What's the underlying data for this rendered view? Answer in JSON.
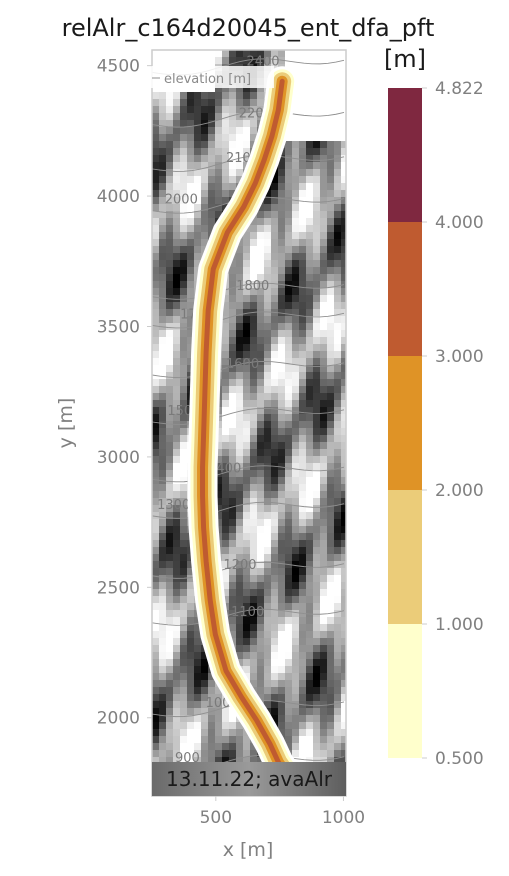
{
  "chart_data": {
    "type": "heatmap",
    "title": "relAlr_c164d20045_ent_dfa_pft",
    "xlabel": "x [m]",
    "ylabel": "y [m]",
    "xlim": [
      250,
      1010
    ],
    "ylim": [
      1700,
      4560
    ],
    "x_ticks": [
      500,
      1000
    ],
    "x_tick_labels": [
      "500",
      "1000"
    ],
    "y_ticks": [
      2000,
      2500,
      3000,
      3500,
      4000,
      4500
    ],
    "y_tick_labels": [
      "2000",
      "2500",
      "3000",
      "3500",
      "4000",
      "4500"
    ],
    "legend": {
      "entries": [
        "elevation [m]"
      ],
      "placement": "top-left"
    },
    "stamp_text": "13.11.22; avaAlr",
    "colorbar": {
      "unit_label": "[m]",
      "bounds": [
        0.5,
        1.0,
        2.0,
        3.0,
        4.0,
        4.822
      ],
      "tick_labels": [
        "0.500",
        "1.000",
        "2.000",
        "3.000",
        "4.000",
        "4.822"
      ],
      "colors": [
        "#ffffcc",
        "#ebcc79",
        "#df9326",
        "#bf5b30",
        "#7f2840"
      ]
    },
    "flow_path": {
      "description_values": "centerline of peak flow thickness (x, y in m)",
      "x": [
        760,
        745,
        720,
        690,
        655,
        610,
        545,
        490,
        470,
        462,
        457,
        452,
        448,
        448,
        452,
        462,
        478,
        498,
        540,
        600,
        660,
        712,
        745,
        780
      ],
      "y": [
        4440,
        4330,
        4230,
        4140,
        4050,
        3960,
        3860,
        3720,
        3560,
        3400,
        3240,
        3080,
        2960,
        2850,
        2730,
        2600,
        2450,
        2320,
        2180,
        2080,
        1990,
        1900,
        1830,
        1780
      ]
    },
    "contours": [
      {
        "label": "900",
        "label_x": 340,
        "label_y": 1850
      },
      {
        "label": "1000",
        "label_x": 460,
        "label_y": 2060
      },
      {
        "label": "1100",
        "label_x": 560,
        "label_y": 2410
      },
      {
        "label": "1200",
        "label_x": 530,
        "label_y": 2590
      },
      {
        "label": "1300",
        "label_x": 270,
        "label_y": 2820
      },
      {
        "label": "1400",
        "label_x": 470,
        "label_y": 2960
      },
      {
        "label": "1500",
        "label_x": 310,
        "label_y": 3180
      },
      {
        "label": "1600",
        "label_x": 540,
        "label_y": 3360
      },
      {
        "label": "1700",
        "label_x": 360,
        "label_y": 3550
      },
      {
        "label": "1800",
        "label_x": 580,
        "label_y": 3660
      },
      {
        "label": "2000",
        "label_x": 300,
        "label_y": 3990
      },
      {
        "label": "2100",
        "label_x": 540,
        "label_y": 4150
      },
      {
        "label": "2200",
        "label_x": 590,
        "label_y": 4320
      },
      {
        "label": "2400",
        "label_x": 620,
        "label_y": 4520
      }
    ]
  },
  "colors": {
    "axis": "#cccccc",
    "tick_text": "#808080",
    "contour": "#8f8f8f"
  }
}
